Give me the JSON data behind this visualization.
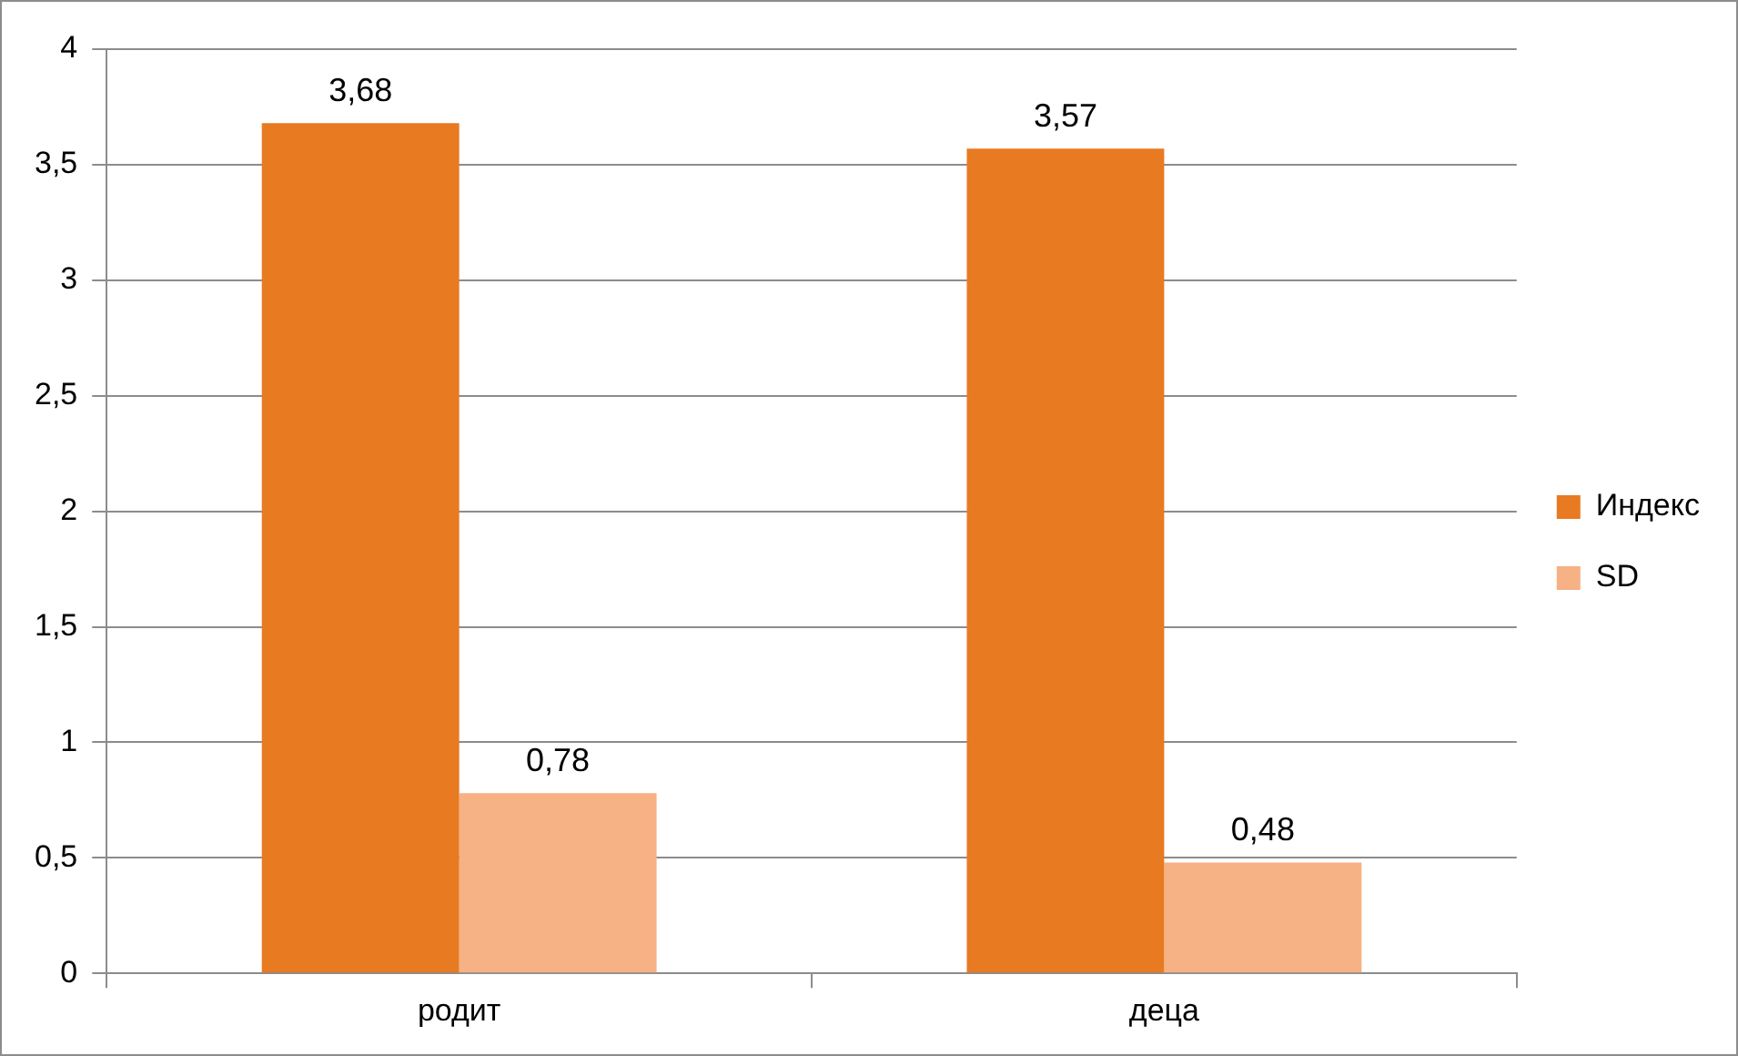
{
  "chart_data": {
    "type": "bar",
    "categories": [
      "родит",
      "деца"
    ],
    "series": [
      {
        "name": "Индекс",
        "color": "#e87a22",
        "values": [
          3.68,
          3.57
        ],
        "value_labels": [
          "3,68",
          "3,57"
        ]
      },
      {
        "name": "SD",
        "color": "#f6b184",
        "values": [
          0.78,
          0.48
        ],
        "value_labels": [
          "0,78",
          "0,48"
        ]
      }
    ],
    "ylim": [
      0,
      4
    ],
    "yticks": [
      0,
      {
        "value": 0.5,
        "label": "0,5"
      },
      1,
      {
        "value": 1.5,
        "label": "1,5"
      },
      2,
      {
        "value": 2.5,
        "label": "2,5"
      },
      3,
      {
        "value": 3.5,
        "label": "3,5"
      },
      4
    ],
    "grid": "y",
    "legend": "right"
  }
}
